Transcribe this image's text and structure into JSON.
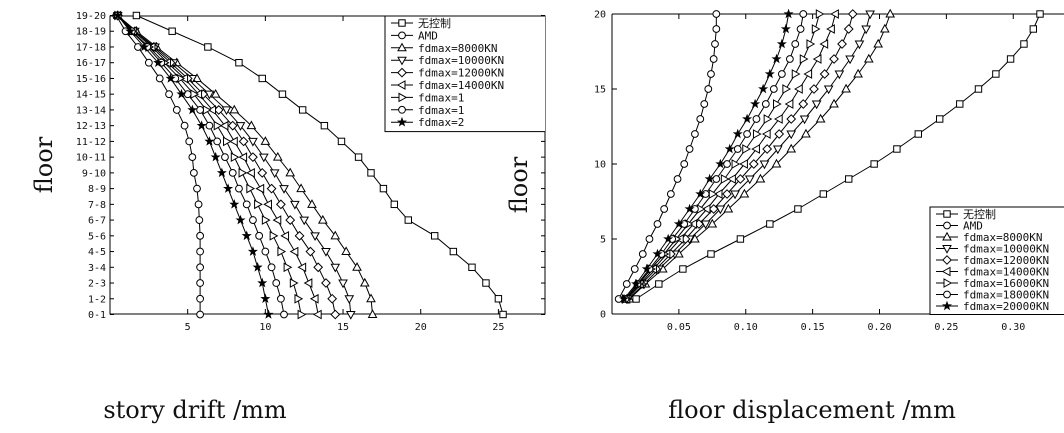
{
  "chart_data": [
    {
      "type": "line",
      "ylabel": "floor",
      "xlabel": "story drift /mm",
      "xlim": [
        0,
        28
      ],
      "xticks": [
        5,
        10,
        15,
        20,
        25
      ],
      "categories": [
        "0-1",
        "1-2",
        "2-3",
        "3-4",
        "4-5",
        "5-6",
        "6-7",
        "7-8",
        "8-9",
        "9-10",
        "10-11",
        "11-12",
        "12-13",
        "13-14",
        "14-15",
        "15-16",
        "16-17",
        "17-18",
        "18-19",
        "19-20"
      ],
      "legend_position": "top-right",
      "legend_visible": [
        "无控制",
        "AMD",
        "fdmax=8000KN",
        "fdmax=10000KN",
        "fdmax=12000KN",
        "fdmax=14000KN",
        "fdmax=1",
        "fdmax=1",
        "fdmax=2"
      ],
      "grid": false,
      "series": [
        {
          "name": "无控制",
          "marker": "square",
          "values": [
            25.3,
            25.0,
            24.2,
            23.3,
            22.1,
            20.9,
            19.2,
            18.3,
            17.6,
            16.8,
            16.0,
            14.9,
            13.8,
            12.4,
            11.1,
            9.8,
            8.3,
            6.3,
            4.0,
            1.7
          ]
        },
        {
          "name": "AMD",
          "marker": "circle",
          "values": [
            5.8,
            5.8,
            5.8,
            5.8,
            5.8,
            5.8,
            5.75,
            5.7,
            5.6,
            5.4,
            5.3,
            5.1,
            4.8,
            4.3,
            3.8,
            3.2,
            2.5,
            1.8,
            1.0,
            0.4
          ]
        },
        {
          "name": "fdmax=8000KN",
          "marker": "triangle-up",
          "values": [
            16.9,
            16.8,
            16.4,
            15.9,
            15.2,
            14.5,
            13.7,
            13.0,
            12.3,
            11.6,
            10.8,
            10.0,
            9.1,
            8.0,
            6.8,
            5.6,
            4.3,
            3.0,
            1.7,
            0.5
          ]
        },
        {
          "name": "fdmax=10000KN",
          "marker": "triangle-down",
          "values": [
            15.5,
            15.4,
            15.0,
            14.5,
            13.9,
            13.2,
            12.5,
            11.9,
            11.2,
            10.6,
            9.9,
            9.2,
            8.4,
            7.5,
            6.4,
            5.3,
            4.1,
            2.9,
            1.6,
            0.5
          ]
        },
        {
          "name": "fdmax=12000KN",
          "marker": "diamond",
          "values": [
            14.5,
            14.3,
            13.9,
            13.4,
            12.9,
            12.2,
            11.6,
            11.0,
            10.4,
            9.8,
            9.2,
            8.6,
            7.9,
            7.0,
            6.0,
            5.0,
            3.9,
            2.8,
            1.6,
            0.5
          ]
        },
        {
          "name": "fdmax=14000KN",
          "marker": "triangle-left",
          "values": [
            13.4,
            13.2,
            12.8,
            12.4,
            11.9,
            11.3,
            10.8,
            10.2,
            9.7,
            9.1,
            8.6,
            8.0,
            7.4,
            6.6,
            5.7,
            4.8,
            3.7,
            2.7,
            1.5,
            0.5
          ]
        },
        {
          "name": "fdmax=16000KN",
          "marker": "triangle-right",
          "values": [
            12.3,
            12.1,
            11.8,
            11.4,
            11.0,
            10.5,
            10.0,
            9.5,
            9.0,
            8.5,
            8.0,
            7.5,
            6.9,
            6.2,
            5.4,
            4.5,
            3.5,
            2.5,
            1.4,
            0.5
          ]
        },
        {
          "name": "fdmax=18000KN",
          "marker": "circle",
          "values": [
            11.2,
            11.0,
            10.7,
            10.4,
            10.0,
            9.6,
            9.2,
            8.8,
            8.3,
            7.9,
            7.4,
            6.9,
            6.4,
            5.8,
            5.0,
            4.2,
            3.3,
            2.4,
            1.4,
            0.5
          ]
        },
        {
          "name": "fdmax=20000KN",
          "marker": "star",
          "values": [
            10.2,
            10.0,
            9.8,
            9.5,
            9.2,
            8.8,
            8.4,
            8.0,
            7.6,
            7.2,
            6.8,
            6.4,
            5.9,
            5.3,
            4.6,
            3.9,
            3.1,
            2.2,
            1.3,
            0.5
          ]
        }
      ]
    },
    {
      "type": "line",
      "ylabel": "floor",
      "xlabel": "floor displacement /mm",
      "xlim": [
        0,
        0.32
      ],
      "ylim": [
        0,
        20
      ],
      "xticks": [
        "0.05",
        "0.10",
        "0.15",
        "0.20",
        "0.25",
        "0.30"
      ],
      "yticks": [
        0,
        5,
        10,
        15,
        20
      ],
      "x": [
        1,
        2,
        3,
        4,
        5,
        6,
        7,
        8,
        9,
        10,
        11,
        12,
        13,
        14,
        15,
        16,
        17,
        18,
        19,
        20
      ],
      "legend_position": "bottom-right",
      "legend_visible": [
        "无控制",
        "AMD",
        "fdmax=8000KN",
        "fdmax=10000KN",
        "fdmax=12000KN",
        "fdmax=14000KN",
        "fdmax=16000KN",
        "fdmax=18000KN",
        "fdmax=20000KN"
      ],
      "grid": false,
      "series": [
        {
          "name": "无控制",
          "marker": "square",
          "values": [
            0.018,
            0.035,
            0.053,
            0.074,
            0.096,
            0.118,
            0.139,
            0.158,
            0.177,
            0.196,
            0.213,
            0.229,
            0.245,
            0.26,
            0.274,
            0.287,
            0.298,
            0.308,
            0.315,
            0.32
          ]
        },
        {
          "name": "AMD",
          "marker": "circle",
          "values": [
            0.005,
            0.011,
            0.017,
            0.023,
            0.028,
            0.034,
            0.039,
            0.044,
            0.049,
            0.054,
            0.058,
            0.062,
            0.066,
            0.069,
            0.072,
            0.074,
            0.076,
            0.077,
            0.078,
            0.078
          ]
        },
        {
          "name": "fdmax=8000KN",
          "marker": "triangle-up",
          "values": [
            0.013,
            0.025,
            0.038,
            0.05,
            0.062,
            0.075,
            0.087,
            0.099,
            0.111,
            0.123,
            0.134,
            0.145,
            0.156,
            0.166,
            0.175,
            0.184,
            0.192,
            0.199,
            0.204,
            0.208
          ]
        },
        {
          "name": "fdmax=10000KN",
          "marker": "triangle-down",
          "values": [
            0.012,
            0.024,
            0.035,
            0.047,
            0.058,
            0.07,
            0.081,
            0.092,
            0.103,
            0.114,
            0.124,
            0.134,
            0.144,
            0.153,
            0.162,
            0.17,
            0.178,
            0.185,
            0.19,
            0.193
          ]
        },
        {
          "name": "fdmax=12000KN",
          "marker": "diamond",
          "values": [
            0.011,
            0.022,
            0.033,
            0.044,
            0.055,
            0.065,
            0.076,
            0.086,
            0.096,
            0.106,
            0.116,
            0.125,
            0.134,
            0.143,
            0.151,
            0.159,
            0.166,
            0.172,
            0.177,
            0.18
          ]
        },
        {
          "name": "fdmax=14000KN",
          "marker": "triangle-left",
          "values": [
            0.011,
            0.021,
            0.031,
            0.041,
            0.051,
            0.061,
            0.071,
            0.08,
            0.09,
            0.099,
            0.108,
            0.116,
            0.125,
            0.133,
            0.14,
            0.147,
            0.154,
            0.159,
            0.164,
            0.167
          ]
        },
        {
          "name": "fdmax=16000KN",
          "marker": "triangle-right",
          "values": [
            0.01,
            0.02,
            0.029,
            0.039,
            0.048,
            0.057,
            0.066,
            0.075,
            0.084,
            0.092,
            0.1,
            0.108,
            0.116,
            0.123,
            0.13,
            0.137,
            0.143,
            0.148,
            0.152,
            0.155
          ]
        },
        {
          "name": "fdmax=18000KN",
          "marker": "circle",
          "values": [
            0.01,
            0.019,
            0.028,
            0.037,
            0.045,
            0.054,
            0.062,
            0.07,
            0.078,
            0.086,
            0.094,
            0.101,
            0.108,
            0.115,
            0.121,
            0.127,
            0.133,
            0.137,
            0.141,
            0.143
          ]
        },
        {
          "name": "fdmax=20000KN",
          "marker": "star",
          "values": [
            0.009,
            0.018,
            0.026,
            0.034,
            0.042,
            0.05,
            0.058,
            0.066,
            0.073,
            0.081,
            0.088,
            0.094,
            0.101,
            0.107,
            0.113,
            0.118,
            0.123,
            0.127,
            0.13,
            0.132
          ]
        }
      ]
    }
  ]
}
